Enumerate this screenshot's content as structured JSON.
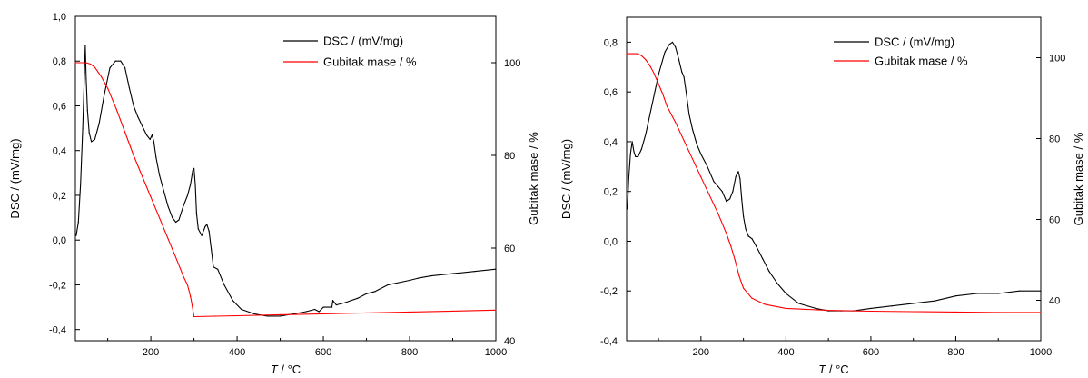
{
  "colors": {
    "dsc": "#000000",
    "mass": "#ff0000",
    "axis": "#000000",
    "background": "#ffffff"
  },
  "chart_data": [
    {
      "type": "line",
      "title": "",
      "xlabel_italic": "T",
      "xlabel_rest": " / °C",
      "ylabel": "DSC / (mV/mg)",
      "y2label": "Gubitak mase / %",
      "xlim": [
        25,
        1000
      ],
      "ylim": [
        -0.45,
        1.0
      ],
      "y2lim": [
        40,
        110
      ],
      "x_ticks": [
        200,
        400,
        600,
        800,
        1000
      ],
      "y_ticks": [
        -0.4,
        -0.2,
        0.0,
        0.2,
        0.4,
        0.6,
        0.8,
        1.0
      ],
      "y_tick_labels": [
        "-0,4",
        "-0,2",
        "0,0",
        "0,2",
        "0,4",
        "0,6",
        "0,8",
        "1,0"
      ],
      "y2_ticks": [
        40,
        60,
        80,
        100
      ],
      "y2_tick_labels": [
        "40",
        "60",
        "80",
        "100"
      ],
      "legend_position": "top-right",
      "series": [
        {
          "name": "DSC / (mV/mg)",
          "axis": "left",
          "color": "#000000",
          "x": [
            27,
            32,
            37,
            42,
            46,
            48,
            50,
            53,
            57,
            62,
            70,
            80,
            92,
            105,
            118,
            130,
            140,
            150,
            160,
            170,
            180,
            190,
            198,
            203,
            207,
            212,
            220,
            230,
            240,
            250,
            258,
            265,
            275,
            285,
            292,
            297,
            300,
            303,
            306,
            310,
            318,
            326,
            330,
            335,
            340,
            345,
            355,
            370,
            390,
            410,
            440,
            470,
            500,
            530,
            560,
            580,
            590,
            600,
            620,
            622,
            630,
            650,
            680,
            700,
            720,
            750,
            800,
            820,
            850,
            900,
            950,
            1000
          ],
          "y": [
            0.02,
            0.08,
            0.25,
            0.5,
            0.75,
            0.87,
            0.72,
            0.58,
            0.48,
            0.44,
            0.45,
            0.52,
            0.65,
            0.77,
            0.8,
            0.8,
            0.77,
            0.68,
            0.6,
            0.55,
            0.51,
            0.47,
            0.45,
            0.47,
            0.44,
            0.37,
            0.29,
            0.22,
            0.15,
            0.1,
            0.08,
            0.09,
            0.15,
            0.2,
            0.25,
            0.31,
            0.32,
            0.25,
            0.12,
            0.05,
            0.02,
            0.06,
            0.07,
            0.04,
            -0.04,
            -0.12,
            -0.13,
            -0.2,
            -0.27,
            -0.31,
            -0.33,
            -0.34,
            -0.34,
            -0.33,
            -0.32,
            -0.31,
            -0.32,
            -0.3,
            -0.3,
            -0.27,
            -0.29,
            -0.28,
            -0.26,
            -0.24,
            -0.23,
            -0.2,
            -0.18,
            -0.17,
            -0.16,
            -0.15,
            -0.14,
            -0.13
          ]
        },
        {
          "name": "Gubitak mase / %",
          "axis": "right",
          "color": "#ff0000",
          "x": [
            25,
            50,
            60,
            70,
            85,
            100,
            120,
            140,
            160,
            180,
            200,
            220,
            240,
            260,
            275,
            285,
            292,
            296,
            300,
            350,
            400,
            500,
            600,
            700,
            800,
            900,
            1000
          ],
          "y": [
            100,
            100,
            99.7,
            99,
            97,
            94.5,
            90,
            85,
            80,
            75.5,
            71,
            66.5,
            62,
            57.5,
            54,
            52,
            49.5,
            47.5,
            45.2,
            45.3,
            45.4,
            45.6,
            45.8,
            46,
            46.2,
            46.4,
            46.6
          ]
        }
      ]
    },
    {
      "type": "line",
      "title": "",
      "xlabel_italic": "T",
      "xlabel_rest": " / °C",
      "ylabel": "DSC / (mV/mg)",
      "y2label": "Gubitak mase / %",
      "xlim": [
        25,
        1000
      ],
      "ylim": [
        -0.4,
        0.9
      ],
      "y2lim": [
        30,
        110
      ],
      "x_ticks": [
        200,
        400,
        600,
        800,
        1000
      ],
      "y_ticks": [
        -0.4,
        -0.2,
        0.0,
        0.2,
        0.4,
        0.6,
        0.8
      ],
      "y_tick_labels": [
        "-0,4",
        "-0,2",
        "0,0",
        "0,2",
        "0,4",
        "0,6",
        "0,8"
      ],
      "y2_ticks": [
        40,
        60,
        80,
        100
      ],
      "y2_tick_labels": [
        "40",
        "60",
        "80",
        "100"
      ],
      "legend_position": "top-right",
      "series": [
        {
          "name": "DSC / (mV/mg)",
          "axis": "left",
          "color": "#000000",
          "x": [
            27,
            30,
            34,
            38,
            42,
            46,
            52,
            60,
            70,
            85,
            100,
            115,
            125,
            133,
            140,
            148,
            155,
            160,
            165,
            172,
            180,
            190,
            200,
            215,
            230,
            240,
            250,
            260,
            268,
            275,
            282,
            288,
            292,
            296,
            300,
            305,
            312,
            320,
            330,
            345,
            360,
            380,
            400,
            430,
            470,
            500,
            530,
            560,
            600,
            650,
            700,
            750,
            800,
            850,
            880,
            900,
            950,
            1000
          ],
          "y": [
            0.13,
            0.25,
            0.35,
            0.4,
            0.36,
            0.34,
            0.34,
            0.37,
            0.43,
            0.55,
            0.67,
            0.76,
            0.79,
            0.8,
            0.78,
            0.73,
            0.68,
            0.66,
            0.6,
            0.51,
            0.45,
            0.39,
            0.35,
            0.3,
            0.24,
            0.22,
            0.2,
            0.16,
            0.17,
            0.2,
            0.26,
            0.28,
            0.25,
            0.17,
            0.1,
            0.05,
            0.02,
            0.01,
            -0.02,
            -0.07,
            -0.12,
            -0.17,
            -0.21,
            -0.25,
            -0.27,
            -0.28,
            -0.28,
            -0.28,
            -0.27,
            -0.26,
            -0.25,
            -0.24,
            -0.22,
            -0.21,
            -0.21,
            -0.21,
            -0.2,
            -0.2
          ]
        },
        {
          "name": "Gubitak mase / %",
          "axis": "right",
          "color": "#ff0000",
          "x": [
            25,
            50,
            60,
            70,
            80,
            90,
            100,
            110,
            120,
            140,
            160,
            180,
            200,
            220,
            240,
            260,
            270,
            280,
            290,
            300,
            320,
            350,
            400,
            500,
            600,
            700,
            800,
            900,
            1000
          ],
          "y": [
            101,
            101,
            100.5,
            99.5,
            98,
            96,
            93.5,
            91,
            88,
            84,
            79.5,
            75,
            70.5,
            66,
            61.5,
            56.5,
            53.5,
            50,
            46,
            43,
            40.5,
            39,
            38,
            37.5,
            37.3,
            37.2,
            37.1,
            37,
            37
          ]
        }
      ]
    }
  ]
}
